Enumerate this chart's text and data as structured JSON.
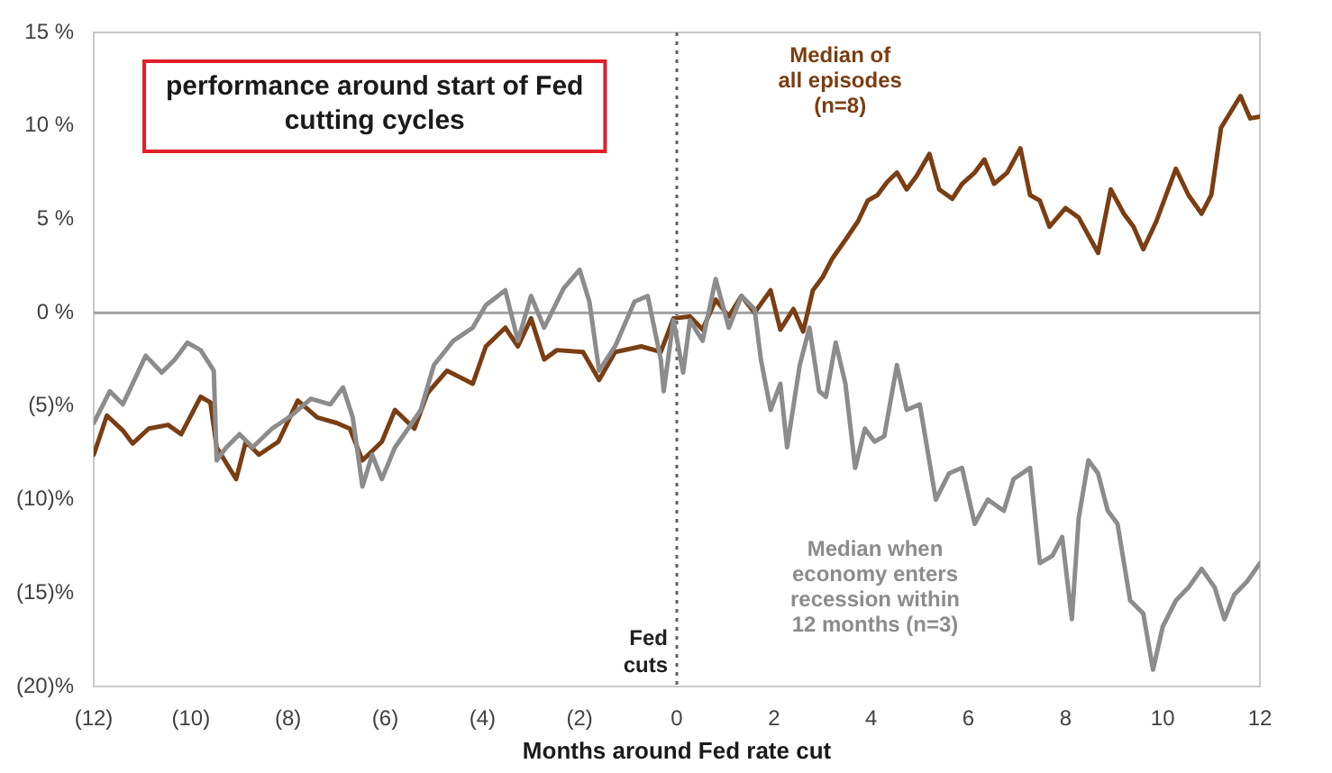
{
  "chart_data": {
    "type": "line",
    "title": "performance around start of Fed cutting cycles",
    "xlabel": "Months around Fed rate cut",
    "xlim": [
      -12,
      12
    ],
    "xticks": [
      {
        "value": -12,
        "label": "(12)"
      },
      {
        "value": -10,
        "label": "(10)"
      },
      {
        "value": -8,
        "label": "(8)"
      },
      {
        "value": -6,
        "label": "(6)"
      },
      {
        "value": -4,
        "label": "(4)"
      },
      {
        "value": -2,
        "label": "(2)"
      },
      0,
      2,
      4,
      6,
      8,
      10,
      12
    ],
    "ylim": [
      -20,
      15
    ],
    "yticks": [
      {
        "value": -20,
        "label": "(20)%"
      },
      {
        "value": -15,
        "label": "(15)%"
      },
      {
        "value": -10,
        "label": "(10)%"
      },
      {
        "value": -5,
        "label": "(5)%"
      },
      {
        "value": 0,
        "label": "0 %"
      },
      {
        "value": 5,
        "label": "5 %"
      },
      {
        "value": 10,
        "label": "10 %"
      },
      {
        "value": 15,
        "label": "15 %"
      }
    ],
    "grid": false,
    "legend": false,
    "marker": "none",
    "line_style": "solid",
    "ref_lines": [
      {
        "axis": "x",
        "value": 0,
        "label": "Fed cuts",
        "line_style": "dotted",
        "color": "#606060"
      },
      {
        "axis": "y",
        "value": 0,
        "color": "#a0a0a0",
        "line_style": "solid"
      }
    ],
    "series": [
      {
        "name": "Median when economy enters recession within 12 months (n=3)",
        "color": "#8c8c8c",
        "x": [
          -12,
          -11.67,
          -11.4,
          -10.93,
          -10.6,
          -10.33,
          -10.07,
          -9.8,
          -9.53,
          -9.47,
          -9.27,
          -9,
          -8.73,
          -8.33,
          -7.93,
          -7.53,
          -7.13,
          -6.87,
          -6.67,
          -6.47,
          -6.27,
          -6.07,
          -5.8,
          -5.53,
          -5.27,
          -5,
          -4.6,
          -4.2,
          -3.93,
          -3.53,
          -3.27,
          -3,
          -2.73,
          -2.33,
          -2,
          -1.8,
          -1.6,
          -1.27,
          -0.87,
          -0.6,
          -0.33,
          -0.27,
          -0.07,
          0.13,
          0.27,
          0.53,
          0.8,
          1.07,
          1.33,
          1.6,
          1.73,
          1.93,
          2.13,
          2.27,
          2.53,
          2.73,
          2.93,
          3.07,
          3.27,
          3.47,
          3.67,
          3.87,
          4.07,
          4.27,
          4.53,
          4.73,
          5,
          5.33,
          5.6,
          5.87,
          6.13,
          6.4,
          6.73,
          6.93,
          7.27,
          7.47,
          7.73,
          7.93,
          8.13,
          8.27,
          8.47,
          8.67,
          8.87,
          9.07,
          9.33,
          9.6,
          9.8,
          10,
          10.27,
          10.53,
          10.8,
          11.07,
          11.27,
          11.47,
          11.73,
          12
        ],
        "values": [
          -5.9,
          -4.2,
          -4.9,
          -2.3,
          -3.2,
          -2.5,
          -1.6,
          -2,
          -3.1,
          -7.9,
          -7.2,
          -6.5,
          -7.2,
          -6.2,
          -5.5,
          -4.6,
          -4.9,
          -4,
          -5.6,
          -9.3,
          -7.6,
          -8.9,
          -7.2,
          -6.2,
          -5.2,
          -2.8,
          -1.5,
          -0.8,
          0.4,
          1.2,
          -1.5,
          0.9,
          -0.8,
          1.3,
          2.3,
          0.6,
          -3.1,
          -1.8,
          0.6,
          0.9,
          -2.5,
          -4.2,
          -0.4,
          -3.2,
          -0.4,
          -1.5,
          1.8,
          -0.8,
          0.9,
          0.2,
          -2.5,
          -5.2,
          -3.8,
          -7.2,
          -2.8,
          -0.8,
          -4.2,
          -4.5,
          -1.6,
          -3.8,
          -8.3,
          -6.2,
          -6.9,
          -6.6,
          -2.8,
          -5.2,
          -4.9,
          -10,
          -8.6,
          -8.3,
          -11.3,
          -10,
          -10.6,
          -8.9,
          -8.3,
          -13.4,
          -13,
          -12,
          -16.4,
          -11,
          -7.9,
          -8.6,
          -10.6,
          -11.3,
          -15.4,
          -16.1,
          -19.1,
          -16.8,
          -15.4,
          -14.7,
          -13.7,
          -14.7,
          -16.4,
          -15.1,
          -14.4,
          -13.4
        ]
      },
      {
        "name": "Median of all episodes (n=8)",
        "color": "#7a3e12",
        "x": [
          -12,
          -11.73,
          -11.4,
          -11.2,
          -10.87,
          -10.47,
          -10.2,
          -9.8,
          -9.6,
          -9.47,
          -9.07,
          -8.87,
          -8.6,
          -8.2,
          -7.8,
          -7.4,
          -7,
          -6.73,
          -6.47,
          -6.07,
          -5.8,
          -5.4,
          -5.13,
          -4.73,
          -4.2,
          -3.93,
          -3.53,
          -3.27,
          -3,
          -2.73,
          -2.47,
          -1.93,
          -1.6,
          -1.27,
          -0.73,
          -0.33,
          -0.07,
          0.27,
          0.53,
          0.8,
          1.07,
          1.33,
          1.6,
          1.93,
          2.13,
          2.4,
          2.6,
          2.8,
          3,
          3.2,
          3.47,
          3.73,
          3.93,
          4.13,
          4.33,
          4.53,
          4.73,
          4.93,
          5.2,
          5.4,
          5.67,
          5.87,
          6.13,
          6.33,
          6.53,
          6.8,
          7.07,
          7.27,
          7.47,
          7.67,
          8,
          8.27,
          8.67,
          8.93,
          9.2,
          9.4,
          9.6,
          9.87,
          10.27,
          10.53,
          10.8,
          11,
          11.2,
          11.6,
          11.8,
          12
        ],
        "values": [
          -7.6,
          -5.5,
          -6.3,
          -7,
          -6.2,
          -6,
          -6.5,
          -4.5,
          -4.8,
          -7.2,
          -8.9,
          -6.9,
          -7.6,
          -6.9,
          -4.7,
          -5.6,
          -5.9,
          -6.2,
          -7.9,
          -6.9,
          -5.2,
          -6.2,
          -4.3,
          -3.1,
          -3.8,
          -1.8,
          -0.8,
          -1.8,
          -0.3,
          -2.5,
          -2,
          -2.1,
          -3.6,
          -2.1,
          -1.8,
          -2.1,
          -0.3,
          -0.2,
          -0.9,
          0.7,
          -0.2,
          0.9,
          0,
          1.2,
          -0.9,
          0.2,
          -1,
          1.2,
          1.9,
          2.9,
          3.9,
          4.9,
          6,
          6.3,
          7,
          7.5,
          6.6,
          7.3,
          8.5,
          6.6,
          6.1,
          6.9,
          7.5,
          8.2,
          6.9,
          7.5,
          8.8,
          6.3,
          6,
          4.6,
          5.6,
          5.1,
          3.2,
          6.6,
          5.3,
          4.6,
          3.4,
          4.9,
          7.7,
          6.3,
          5.3,
          6.3,
          9.9,
          11.6,
          10.4,
          10.5
        ]
      }
    ]
  }
}
